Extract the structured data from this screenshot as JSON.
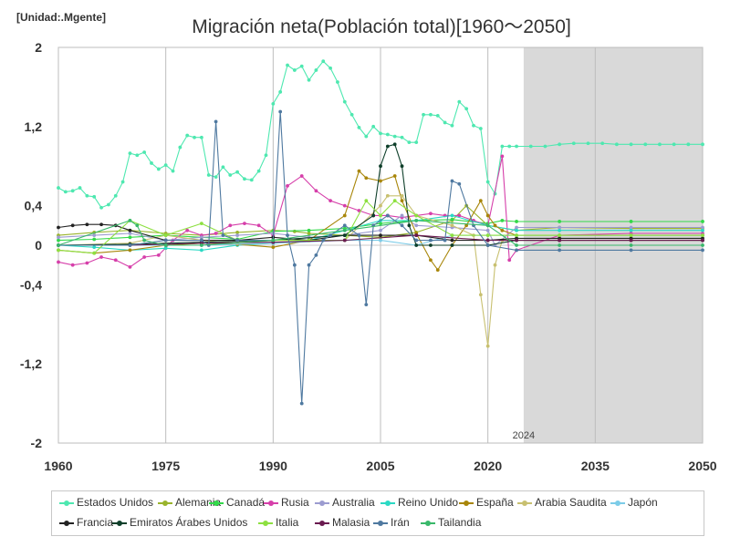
{
  "header": {
    "unit_label": "[Unidad:.Mgente]"
  },
  "chart_data": {
    "type": "line",
    "title": "Migración neta(Población total)[1960～2050]",
    "xlabel": "",
    "ylabel": "",
    "xlim": [
      1960,
      2050
    ],
    "ylim": [
      -2,
      2
    ],
    "x_ticks": [
      1960,
      1975,
      1990,
      2005,
      2020,
      2035,
      2050
    ],
    "y_ticks": [
      {
        "value": 2,
        "label": "2"
      },
      {
        "value": 1.2,
        "label": "1,2"
      },
      {
        "value": 0.4,
        "label": "0,4"
      },
      {
        "value": 0,
        "label": "0"
      },
      {
        "value": -0.4,
        "label": "-0,4"
      },
      {
        "value": -1.2,
        "label": "-1,2"
      },
      {
        "value": -2,
        "label": "-2"
      }
    ],
    "grid_x": true,
    "grid_y": false,
    "projection_start": 2025,
    "projection_label": "2024",
    "legend_position": "bottom",
    "series": [
      {
        "name": "Estados Unidos",
        "color": "#4ee8b0",
        "x": [
          1960,
          1961,
          1962,
          1963,
          1964,
          1965,
          1966,
          1967,
          1968,
          1969,
          1970,
          1971,
          1972,
          1973,
          1974,
          1975,
          1976,
          1977,
          1978,
          1979,
          1980,
          1981,
          1982,
          1983,
          1984,
          1985,
          1986,
          1987,
          1988,
          1989,
          1990,
          1991,
          1992,
          1993,
          1994,
          1995,
          1996,
          1997,
          1998,
          1999,
          2000,
          2001,
          2002,
          2003,
          2004,
          2005,
          2006,
          2007,
          2008,
          2009,
          2010,
          2011,
          2012,
          2013,
          2014,
          2015,
          2016,
          2017,
          2018,
          2019,
          2020,
          2021,
          2022,
          2023,
          2024,
          2026,
          2028,
          2030,
          2032,
          2034,
          2036,
          2038,
          2040,
          2042,
          2044,
          2046,
          2048,
          2050
        ],
        "values": [
          0.58,
          0.54,
          0.55,
          0.58,
          0.5,
          0.49,
          0.38,
          0.41,
          0.5,
          0.64,
          0.93,
          0.91,
          0.94,
          0.83,
          0.77,
          0.81,
          0.75,
          0.99,
          1.11,
          1.09,
          1.09,
          0.71,
          0.69,
          0.79,
          0.71,
          0.74,
          0.67,
          0.66,
          0.75,
          0.91,
          1.43,
          1.55,
          1.82,
          1.77,
          1.81,
          1.67,
          1.77,
          1.86,
          1.79,
          1.65,
          1.45,
          1.32,
          1.19,
          1.1,
          1.2,
          1.13,
          1.12,
          1.1,
          1.09,
          1.04,
          1.04,
          1.32,
          1.32,
          1.31,
          1.24,
          1.21,
          1.45,
          1.38,
          1.21,
          1.18,
          0.64,
          0.52,
          1.0,
          1.0,
          1.0,
          1.0,
          1.0,
          1.02,
          1.03,
          1.03,
          1.03,
          1.02,
          1.02,
          1.02,
          1.02,
          1.02,
          1.02,
          1.02
        ]
      },
      {
        "name": "Alemania",
        "color": "#9ab42c",
        "x": [
          1960,
          1965,
          1970,
          1975,
          1980,
          1985,
          1990,
          1993,
          1995,
          2000,
          2005,
          2010,
          2015,
          2017,
          2020,
          2024,
          2030,
          2040,
          2050
        ],
        "values": [
          0.1,
          0.13,
          0.15,
          0.12,
          0.1,
          0.13,
          0.15,
          0.14,
          0.12,
          0.1,
          0.08,
          0.13,
          0.25,
          0.4,
          0.2,
          0.15,
          0.18,
          0.17,
          0.17
        ]
      },
      {
        "name": "Canadá",
        "color": "#33d94a",
        "x": [
          1960,
          1965,
          1970,
          1975,
          1980,
          1985,
          1990,
          1995,
          2000,
          2005,
          2010,
          2015,
          2020,
          2022,
          2024,
          2030,
          2040,
          2050
        ],
        "values": [
          0.05,
          0.06,
          0.08,
          0.1,
          0.08,
          0.06,
          0.14,
          0.15,
          0.17,
          0.22,
          0.25,
          0.26,
          0.22,
          0.25,
          0.24,
          0.24,
          0.24,
          0.24
        ]
      },
      {
        "name": "Rusia",
        "color": "#d63faa",
        "x": [
          1960,
          1962,
          1964,
          1966,
          1968,
          1970,
          1972,
          1974,
          1976,
          1978,
          1980,
          1982,
          1984,
          1986,
          1988,
          1990,
          1992,
          1994,
          1996,
          1998,
          2000,
          2002,
          2004,
          2006,
          2008,
          2010,
          2012,
          2014,
          2016,
          2018,
          2020,
          2022,
          2023,
          2024,
          2030,
          2040,
          2050
        ],
        "values": [
          -0.17,
          -0.2,
          -0.18,
          -0.12,
          -0.15,
          -0.22,
          -0.12,
          -0.1,
          0.05,
          0.15,
          0.1,
          0.12,
          0.2,
          0.22,
          0.2,
          0.1,
          0.6,
          0.7,
          0.55,
          0.45,
          0.4,
          0.35,
          0.3,
          0.3,
          0.28,
          0.3,
          0.32,
          0.3,
          0.3,
          0.25,
          0.2,
          0.9,
          -0.15,
          -0.05,
          0.1,
          0.12,
          0.12
        ]
      },
      {
        "name": "Australia",
        "color": "#9c9cd0",
        "x": [
          1960,
          1965,
          1970,
          1975,
          1980,
          1985,
          1990,
          1995,
          2000,
          2005,
          2008,
          2010,
          2015,
          2020,
          2021,
          2024,
          2030,
          2040,
          2050
        ],
        "values": [
          0.08,
          0.1,
          0.12,
          0.05,
          0.08,
          0.1,
          0.12,
          0.08,
          0.1,
          0.15,
          0.3,
          0.2,
          0.18,
          0.15,
          0.0,
          0.18,
          0.18,
          0.18,
          0.18
        ]
      },
      {
        "name": "Reino Unido",
        "color": "#2bd9c4",
        "x": [
          1960,
          1965,
          1970,
          1975,
          1980,
          1985,
          1990,
          1995,
          2000,
          2005,
          2010,
          2015,
          2020,
          2024,
          2030,
          2040,
          2050
        ],
        "values": [
          0.0,
          -0.02,
          -0.05,
          -0.03,
          -0.05,
          0.0,
          0.02,
          0.05,
          0.15,
          0.25,
          0.25,
          0.3,
          0.2,
          0.15,
          0.15,
          0.15,
          0.15
        ]
      },
      {
        "name": "España",
        "color": "#a8860a",
        "x": [
          1960,
          1965,
          1970,
          1975,
          1980,
          1985,
          1990,
          1995,
          2000,
          2002,
          2003,
          2005,
          2007,
          2008,
          2010,
          2012,
          2013,
          2015,
          2017,
          2019,
          2020,
          2021,
          2022,
          2024,
          2030,
          2040,
          2050
        ],
        "values": [
          -0.05,
          -0.08,
          -0.05,
          0.0,
          0.02,
          0.01,
          -0.02,
          0.05,
          0.3,
          0.75,
          0.68,
          0.65,
          0.7,
          0.45,
          0.12,
          -0.15,
          -0.25,
          0.0,
          0.2,
          0.45,
          0.3,
          0.2,
          0.15,
          0.1,
          0.1,
          0.1,
          0.1
        ]
      },
      {
        "name": "Arabia Saudita",
        "color": "#c8c070",
        "x": [
          1960,
          1970,
          1975,
          1980,
          1985,
          1990,
          1995,
          2000,
          2005,
          2006,
          2008,
          2010,
          2015,
          2018,
          2019,
          2020,
          2021,
          2022,
          2024,
          2030,
          2040,
          2050
        ],
        "values": [
          0.0,
          0.02,
          0.1,
          0.05,
          0.02,
          0.05,
          0.05,
          0.05,
          0.4,
          0.5,
          0.5,
          0.3,
          0.2,
          0.1,
          -0.5,
          -1.02,
          -0.2,
          0.05,
          0.05,
          0.05,
          0.05,
          0.05
        ]
      },
      {
        "name": "Japón",
        "color": "#7ccce8",
        "x": [
          1960,
          1970,
          1980,
          1990,
          2000,
          2005,
          2010,
          2015,
          2020,
          2024,
          2030,
          2040,
          2050
        ],
        "values": [
          0.0,
          0.0,
          0.0,
          0.02,
          0.05,
          0.05,
          0.0,
          0.1,
          0.1,
          0.1,
          0.1,
          0.1,
          0.1
        ]
      },
      {
        "name": "Francia",
        "color": "#222222",
        "x": [
          1960,
          1962,
          1964,
          1966,
          1968,
          1970,
          1975,
          1980,
          1985,
          1990,
          1995,
          2000,
          2005,
          2010,
          2015,
          2020,
          2024,
          2030,
          2040,
          2050
        ],
        "values": [
          0.18,
          0.2,
          0.21,
          0.21,
          0.2,
          0.15,
          0.05,
          0.05,
          0.05,
          0.08,
          0.05,
          0.1,
          0.1,
          0.1,
          0.05,
          0.05,
          0.07,
          0.07,
          0.07,
          0.07
        ]
      },
      {
        "name": "Emiratos Árabes Unidos",
        "color": "#0e3f2a",
        "x": [
          1960,
          1970,
          1980,
          1990,
          2000,
          2004,
          2005,
          2006,
          2007,
          2008,
          2009,
          2010,
          2012,
          2015,
          2020,
          2024,
          2030,
          2040,
          2050
        ],
        "values": [
          0.0,
          0.01,
          0.03,
          0.05,
          0.1,
          0.3,
          0.8,
          1.0,
          1.02,
          0.8,
          0.2,
          0.0,
          0.0,
          0.0,
          0.0,
          0.05,
          0.05,
          0.05,
          0.05
        ]
      },
      {
        "name": "Italia",
        "color": "#8de040",
        "x": [
          1960,
          1965,
          1970,
          1975,
          1980,
          1985,
          1990,
          1995,
          2000,
          2003,
          2005,
          2007,
          2010,
          2015,
          2020,
          2024,
          2030,
          2040,
          2050
        ],
        "values": [
          -0.05,
          -0.08,
          0.25,
          0.1,
          0.22,
          0.05,
          0.05,
          0.05,
          0.05,
          0.45,
          0.3,
          0.45,
          0.3,
          0.1,
          0.1,
          0.1,
          0.1,
          0.1,
          0.1
        ]
      },
      {
        "name": "Malasia",
        "color": "#6a1a50",
        "x": [
          1960,
          1970,
          1980,
          1990,
          2000,
          2010,
          2020,
          2024,
          2030,
          2040,
          2050
        ],
        "values": [
          0.0,
          0.0,
          0.02,
          0.03,
          0.05,
          0.1,
          0.05,
          0.05,
          0.05,
          0.05,
          0.05
        ]
      },
      {
        "name": "Irán",
        "color": "#4f79a0",
        "x": [
          1960,
          1970,
          1975,
          1980,
          1981,
          1982,
          1983,
          1985,
          1990,
          1991,
          1992,
          1993,
          1994,
          1995,
          1996,
          1997,
          1998,
          2000,
          2002,
          2003,
          2004,
          2006,
          2008,
          2010,
          2012,
          2014,
          2015,
          2016,
          2018,
          2020,
          2024,
          2030,
          2040,
          2050
        ],
        "values": [
          0.0,
          0.0,
          0.05,
          0.05,
          0.0,
          1.25,
          0.1,
          0.05,
          0.05,
          1.35,
          0.1,
          -0.2,
          -1.6,
          -0.2,
          -0.1,
          0.05,
          0.1,
          0.2,
          0.1,
          -0.6,
          0.2,
          0.3,
          0.2,
          0.05,
          0.05,
          0.05,
          0.65,
          0.62,
          0.2,
          0.0,
          -0.05,
          -0.05,
          -0.05,
          -0.05
        ]
      },
      {
        "name": "Tailandia",
        "color": "#39b86a",
        "x": [
          1960,
          1970,
          1971,
          1972,
          1975,
          1980,
          1990,
          2000,
          2010,
          2020,
          2024,
          2030,
          2040,
          2050
        ],
        "values": [
          0.0,
          0.25,
          0.2,
          0.05,
          0.0,
          0.0,
          0.05,
          0.15,
          0.25,
          0.2,
          0.0,
          0.0,
          0.0,
          0.0
        ]
      }
    ]
  }
}
